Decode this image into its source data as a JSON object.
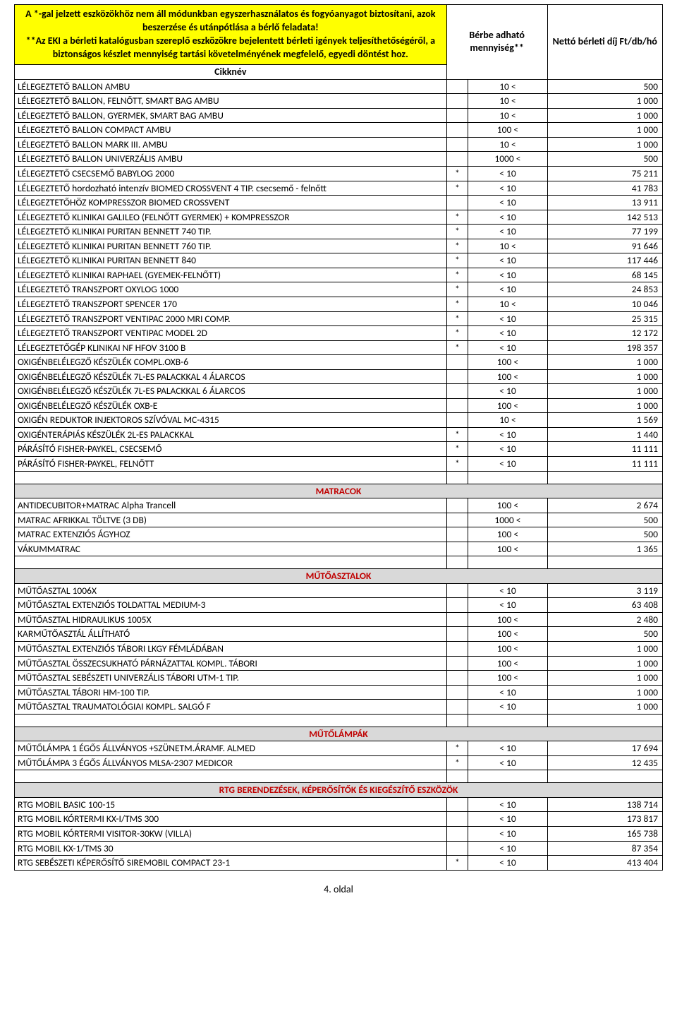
{
  "header": {
    "note_line1": "A *-gal jelzett eszközökhöz nem áll módunkban egyszerhasználatos és fogyóanyagot biztosítani, azok beszerzése és utánpótlása a bérlő feladata!",
    "note_line2": "**Az EKI a bérleti katalógusban szereplő eszközökre bejelentett bérleti igények teljesíthetőségéről, a biztonságos készlet mennyiség tartási követelményének megfelelő, egyedi döntést hoz.",
    "cikknev": "Cikknév",
    "qty_header": "Bérbe adható mennyiség**",
    "price_header": "Nettó bérleti díj Ft/db/hó"
  },
  "rows": [
    {
      "type": "data",
      "name": "LÉLEGEZTETŐ BALLON AMBU",
      "star": "",
      "qty": "10 <",
      "price": "500"
    },
    {
      "type": "data",
      "name": "LÉLEGEZTETŐ BALLON, FELNŐTT, SMART BAG AMBU",
      "star": "",
      "qty": "10 <",
      "price": "1 000"
    },
    {
      "type": "data",
      "name": "LÉLEGEZTETŐ BALLON, GYERMEK, SMART BAG AMBU",
      "star": "",
      "qty": "10 <",
      "price": "1 000"
    },
    {
      "type": "data",
      "name": "LÉLEGEZTETŐ BALLON COMPACT AMBU",
      "star": "",
      "qty": "100 <",
      "price": "1 000"
    },
    {
      "type": "data",
      "name": "LÉLEGEZTETŐ BALLON MARK III. AMBU",
      "star": "",
      "qty": "10 <",
      "price": "1 000"
    },
    {
      "type": "data",
      "name": "LÉLEGEZTETŐ BALLON UNIVERZÁLIS AMBU",
      "star": "",
      "qty": "1000 <",
      "price": "500"
    },
    {
      "type": "data",
      "name": "LÉLEGEZTETŐ CSECSEMŐ BABYLOG 2000",
      "star": "*",
      "qty": "< 10",
      "price": "75 211"
    },
    {
      "type": "data",
      "name": "LÉLEGEZTETŐ hordozható intenzív BIOMED CROSSVENT 4 TIP. csecsemő - felnőtt",
      "star": "*",
      "qty": "< 10",
      "price": "41 783"
    },
    {
      "type": "data",
      "name": "LÉLEGEZTETŐHÖZ KOMPRESSZOR BIOMED CROSSVENT",
      "star": "",
      "qty": "< 10",
      "price": "13 911"
    },
    {
      "type": "data",
      "name": "LÉLEGEZTETŐ KLINIKAI GALILEO (FELNŐTT GYERMEK) + KOMPRESSZOR",
      "star": "*",
      "qty": "< 10",
      "price": "142 513"
    },
    {
      "type": "data",
      "name": "LÉLEGEZTETŐ KLINIKAI PURITAN BENNETT 740 TIP.",
      "star": "*",
      "qty": "< 10",
      "price": "77 199"
    },
    {
      "type": "data",
      "name": "LÉLEGEZTETŐ KLINIKAI PURITAN BENNETT 760 TIP.",
      "star": "*",
      "qty": "10 <",
      "price": "91 646"
    },
    {
      "type": "data",
      "name": "LÉLEGEZTETŐ KLINIKAI PURITAN BENNETT 840",
      "star": "*",
      "qty": "< 10",
      "price": "117 446"
    },
    {
      "type": "data",
      "name": "LÉLEGEZTETŐ KLINIKAI RAPHAEL (GYEMEK-FELNŐTT)",
      "star": "*",
      "qty": "< 10",
      "price": "68 145"
    },
    {
      "type": "data",
      "name": "LÉLEGEZTETŐ TRANSZPORT OXYLOG 1000",
      "star": "*",
      "qty": "< 10",
      "price": "24 853"
    },
    {
      "type": "data",
      "name": "LÉLEGEZTETŐ TRANSZPORT SPENCER 170",
      "star": "*",
      "qty": "10 <",
      "price": "10 046"
    },
    {
      "type": "data",
      "name": "LÉLEGEZTETŐ TRANSZPORT VENTIPAC 2000 MRI COMP.",
      "star": "*",
      "qty": "< 10",
      "price": "25 315"
    },
    {
      "type": "data",
      "name": "LÉLEGEZTETŐ TRANSZPORT VENTIPAC MODEL 2D",
      "star": "*",
      "qty": "< 10",
      "price": "12 172"
    },
    {
      "type": "data",
      "name": "LÉLEGEZTETŐGÉP KLINIKAI NF HFOV 3100 B",
      "star": "*",
      "qty": "< 10",
      "price": "198 357"
    },
    {
      "type": "data",
      "name": "OXIGÉNBELÉLEGZŐ KÉSZÜLÉK  COMPL.OXB-6",
      "star": "",
      "qty": "100 <",
      "price": "1 000"
    },
    {
      "type": "data",
      "name": "OXIGÉNBELÉLEGZŐ KÉSZÜLÉK 7L-ES PALACKKAL 4 ÁLARCOS",
      "star": "",
      "qty": "100 <",
      "price": "1 000"
    },
    {
      "type": "data",
      "name": "OXIGÉNBELÉLEGZŐ KÉSZÜLÉK 7L-ES PALACKKAL 6 ÁLARCOS",
      "star": "",
      "qty": "< 10",
      "price": "1 000"
    },
    {
      "type": "data",
      "name": "OXIGÉNBELÉLEGZŐ KÉSZÜLÉK OXB-E",
      "star": "",
      "qty": "100 <",
      "price": "1 000"
    },
    {
      "type": "data",
      "name": "OXIGÉN REDUKTOR INJEKTOROS SZÍVÓVAL MC-4315",
      "star": "",
      "qty": "10 <",
      "price": "1 569"
    },
    {
      "type": "data",
      "name": "OXIGÉNTERÁPIÁS KÉSZÜLÉK 2L-ES PALACKKAL",
      "star": "*",
      "qty": "< 10",
      "price": "1 440"
    },
    {
      "type": "data",
      "name": "PÁRÁSÍTÓ FISHER-PAYKEL, CSECSEMŐ",
      "star": "*",
      "qty": "< 10",
      "price": "11 111"
    },
    {
      "type": "data",
      "name": "PÁRÁSÍTÓ FISHER-PAYKEL, FELNŐTT",
      "star": "*",
      "qty": "< 10",
      "price": "11 111"
    },
    {
      "type": "blank"
    },
    {
      "type": "section",
      "label": "MATRACOK"
    },
    {
      "type": "data",
      "name": "ANTIDECUBITOR+MATRAC Alpha Trancell",
      "star": "",
      "qty": "100 <",
      "price": "2 674"
    },
    {
      "type": "data",
      "name": "MATRAC AFRIKKAL TÖLTVE (3 DB)",
      "star": "",
      "qty": "1000 <",
      "price": "500"
    },
    {
      "type": "data",
      "name": "MATRAC EXTENZIÓS ÁGYHOZ",
      "star": "",
      "qty": "100 <",
      "price": "500"
    },
    {
      "type": "data",
      "name": "VÁKUMMATRAC",
      "star": "",
      "qty": "100 <",
      "price": "1 365"
    },
    {
      "type": "blank"
    },
    {
      "type": "section",
      "label": "MŰTŐASZTALOK"
    },
    {
      "type": "data",
      "name": "MŰTŐASZTAL 1006X",
      "star": "",
      "qty": "< 10",
      "price": "3 119"
    },
    {
      "type": "data",
      "name": "MŰTŐASZTAL EXTENZIÓS TOLDATTAL MEDIUM-3",
      "star": "",
      "qty": "< 10",
      "price": "63 408"
    },
    {
      "type": "data",
      "name": "MŰTŐASZTAL HIDRAULIKUS 1005X",
      "star": "",
      "qty": "100 <",
      "price": "2 480"
    },
    {
      "type": "data",
      "name": "KARMŰTŐASZTÁL ÁLLÍTHATÓ",
      "star": "",
      "qty": "100 <",
      "price": "500"
    },
    {
      "type": "data",
      "name": "MŰTŐASZTAL EXTENZIÓS TÁBORI LKGY FÉMLÁDÁBAN",
      "star": "",
      "qty": "100 <",
      "price": "1 000"
    },
    {
      "type": "data",
      "name": "MŰTŐASZTAL ÖSSZECSUKHATÓ PÁRNÁZATTAL KOMPL. TÁBORI",
      "star": "",
      "qty": "100 <",
      "price": "1 000"
    },
    {
      "type": "data",
      "name": "MŰTŐASZTAL SEBÉSZETI UNIVERZÁLIS TÁBORI UTM-1 TIP.",
      "star": "",
      "qty": "100 <",
      "price": "1 000"
    },
    {
      "type": "data",
      "name": "MŰTŐASZTAL TÁBORI HM-100 TIP.",
      "star": "",
      "qty": "< 10",
      "price": "1 000"
    },
    {
      "type": "data",
      "name": "MŰTŐASZTAL TRAUMATOLÓGIAI KOMPL. SALGÓ F",
      "star": "",
      "qty": "< 10",
      "price": "1 000"
    },
    {
      "type": "blank"
    },
    {
      "type": "section",
      "label": "MŰTŐLÁMPÁK"
    },
    {
      "type": "data",
      "name": "MŰTŐLÁMPA 1 ÉGŐS ÁLLVÁNYOS +SZÜNETM.ÁRAMF. ALMED",
      "star": "*",
      "qty": "< 10",
      "price": "17 694"
    },
    {
      "type": "data",
      "name": "MŰTŐLÁMPA 3 ÉGŐS ÁLLVÁNYOS MLSA-2307 MEDICOR",
      "star": "*",
      "qty": "< 10",
      "price": "12 435"
    },
    {
      "type": "blank"
    },
    {
      "type": "section",
      "label": "RTG BERENDEZÉSEK, KÉPERŐSÍTŐK ÉS KIEGÉSZÍTŐ ESZKÖZÖK"
    },
    {
      "type": "data",
      "name": "RTG MOBIL BASIC 100-15",
      "star": "",
      "qty": "< 10",
      "price": "138 714"
    },
    {
      "type": "data",
      "name": "RTG MOBIL KÓRTERMI KX-I/TMS 300",
      "star": "",
      "qty": "< 10",
      "price": "173 817"
    },
    {
      "type": "data",
      "name": "RTG MOBIL KÓRTERMI VISITOR-30KW (VILLA)",
      "star": "",
      "qty": "< 10",
      "price": "165 738"
    },
    {
      "type": "data",
      "name": "RTG MOBIL KX-1/TMS 30",
      "star": "",
      "qty": "< 10",
      "price": "87 354"
    },
    {
      "type": "data",
      "name": "RTG SEBÉSZETI KÉPERŐSÍTŐ SIREMOBIL COMPACT 23-1",
      "star": "*",
      "qty": "< 10",
      "price": "413 404"
    }
  ],
  "footer": "4. oldal"
}
